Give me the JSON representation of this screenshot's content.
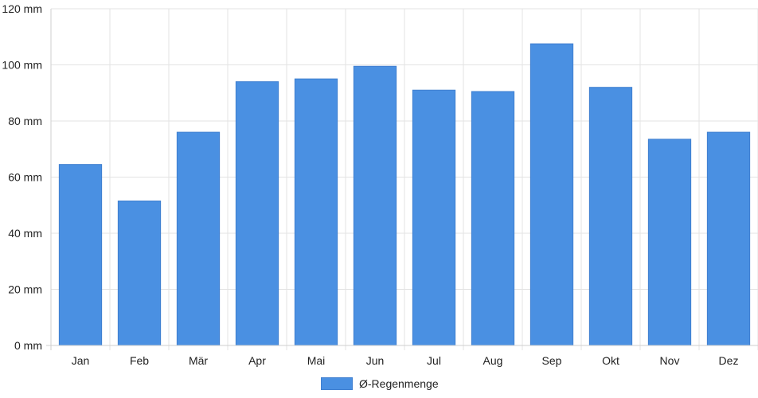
{
  "chart_data": {
    "type": "bar",
    "categories": [
      "Jan",
      "Feb",
      "Mär",
      "Apr",
      "Mai",
      "Jun",
      "Jul",
      "Aug",
      "Sep",
      "Okt",
      "Nov",
      "Dez"
    ],
    "series": [
      {
        "name": "Ø-Regenmenge",
        "values": [
          64.5,
          51.5,
          76,
          94,
          95,
          99.5,
          91,
          90.5,
          107.5,
          92,
          73.5,
          76
        ],
        "color": "#4a90e2"
      }
    ],
    "y_ticks": [
      "0 mm",
      "20 mm",
      "40 mm",
      "60 mm",
      "80 mm",
      "100 mm",
      "120 mm"
    ],
    "ylim": [
      0,
      120
    ],
    "grid": true,
    "legend_position": "bottom-center"
  }
}
